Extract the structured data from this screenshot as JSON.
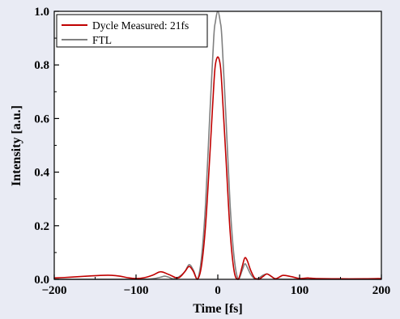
{
  "colors": {
    "background": "#e9ebf4",
    "plot_background": "#ffffff",
    "measured": "#c00000",
    "ftl": "#808080"
  },
  "chart_data": {
    "type": "line",
    "title": "",
    "xlabel": "Time [fs]",
    "ylabel": "Intensity [a.u.]",
    "xlim": [
      -200,
      200
    ],
    "ylim": [
      0,
      1.0
    ],
    "xticks": [
      -200,
      -100,
      0,
      100,
      200
    ],
    "yticks": [
      0.0,
      0.2,
      0.4,
      0.6,
      0.8,
      1.0
    ],
    "xtick_labels": [
      "−200",
      "−100",
      "0",
      "100",
      "200"
    ],
    "ytick_labels": [
      "0.0",
      "0.2",
      "0.4",
      "0.6",
      "0.8",
      "1.0"
    ],
    "grid": false,
    "legend_position": "top-left",
    "series": [
      {
        "name": "Dycle Measured: 21fs",
        "color": "#c00000",
        "x": [
          -200,
          -180,
          -160,
          -140,
          -130,
          -120,
          -110,
          -100,
          -90,
          -80,
          -70,
          -60,
          -50,
          -45,
          -40,
          -35,
          -30,
          -25,
          -20,
          -15,
          -10,
          -5,
          -3,
          0,
          3,
          5,
          10,
          15,
          20,
          25,
          30,
          33,
          36,
          40,
          45,
          50,
          55,
          60,
          65,
          70,
          75,
          80,
          90,
          100,
          110,
          120,
          150,
          180,
          200
        ],
        "y": [
          0.005,
          0.008,
          0.012,
          0.015,
          0.015,
          0.012,
          0.006,
          0.003,
          0.006,
          0.015,
          0.028,
          0.018,
          0.005,
          0.012,
          0.03,
          0.048,
          0.03,
          0.0,
          0.05,
          0.2,
          0.45,
          0.72,
          0.8,
          0.83,
          0.8,
          0.72,
          0.45,
          0.18,
          0.03,
          0.0,
          0.05,
          0.08,
          0.07,
          0.035,
          0.005,
          0.0,
          0.01,
          0.02,
          0.012,
          0.002,
          0.008,
          0.015,
          0.01,
          0.003,
          0.005,
          0.003,
          0.002,
          0.002,
          0.003
        ]
      },
      {
        "name": "FTL",
        "color": "#808080",
        "x": [
          -200,
          -100,
          -80,
          -70,
          -65,
          -60,
          -55,
          -50,
          -45,
          -40,
          -35,
          -30,
          -25,
          -20,
          -15,
          -10,
          -5,
          -3,
          0,
          3,
          5,
          10,
          15,
          20,
          25,
          30,
          33,
          36,
          40,
          45,
          50,
          55,
          60,
          65,
          70,
          80,
          100,
          200
        ],
        "y": [
          0.0,
          0.0,
          0.002,
          0.008,
          0.012,
          0.008,
          0.002,
          0.005,
          0.015,
          0.03,
          0.055,
          0.035,
          0.0,
          0.08,
          0.28,
          0.6,
          0.9,
          0.96,
          1.0,
          0.96,
          0.9,
          0.6,
          0.28,
          0.08,
          0.0,
          0.035,
          0.058,
          0.045,
          0.02,
          0.003,
          0.005,
          0.015,
          0.02,
          0.012,
          0.003,
          0.0,
          0.0,
          0.0
        ]
      }
    ]
  }
}
